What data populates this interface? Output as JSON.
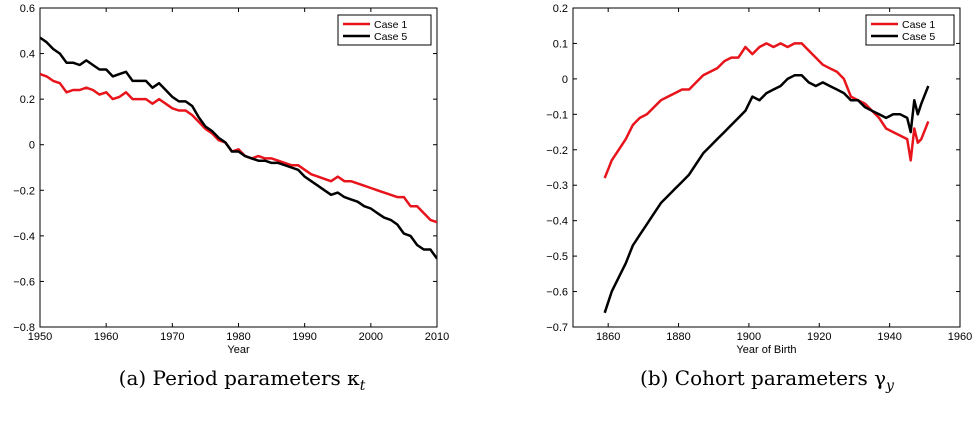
{
  "chart_data": [
    {
      "type": "line",
      "xlabel": "Year",
      "ylabel": "",
      "xlim": [
        1950,
        2010
      ],
      "ylim": [
        -0.8,
        0.6
      ],
      "xticks": [
        "1950",
        "1960",
        "1970",
        "1980",
        "1990",
        "2000",
        "2010"
      ],
      "yticks": [
        "0.6",
        "0.4",
        "0.2",
        "0",
        "−0.2",
        "−0.4",
        "−0.6",
        "−0.8"
      ],
      "legend_position": "top-right",
      "caption": "(a) Period parameters κ",
      "caption_sub": "t",
      "grid": false,
      "series": [
        {
          "name": "Case 1",
          "color": "#e8141c",
          "x": [
            1950,
            1951,
            1952,
            1953,
            1954,
            1955,
            1956,
            1957,
            1958,
            1959,
            1960,
            1961,
            1962,
            1963,
            1964,
            1965,
            1966,
            1967,
            1968,
            1969,
            1970,
            1971,
            1972,
            1973,
            1974,
            1975,
            1976,
            1977,
            1978,
            1979,
            1980,
            1981,
            1982,
            1983,
            1984,
            1985,
            1986,
            1987,
            1988,
            1989,
            1990,
            1991,
            1992,
            1993,
            1994,
            1995,
            1996,
            1997,
            1998,
            1999,
            2000,
            2001,
            2002,
            2003,
            2004,
            2005,
            2006,
            2007,
            2008,
            2009,
            2010
          ],
          "y": [
            0.31,
            0.3,
            0.28,
            0.27,
            0.23,
            0.24,
            0.24,
            0.25,
            0.24,
            0.22,
            0.23,
            0.2,
            0.21,
            0.23,
            0.2,
            0.2,
            0.2,
            0.18,
            0.2,
            0.18,
            0.16,
            0.15,
            0.15,
            0.13,
            0.1,
            0.07,
            0.05,
            0.02,
            0.01,
            -0.03,
            -0.02,
            -0.05,
            -0.06,
            -0.05,
            -0.06,
            -0.06,
            -0.07,
            -0.08,
            -0.09,
            -0.09,
            -0.11,
            -0.13,
            -0.14,
            -0.15,
            -0.16,
            -0.14,
            -0.16,
            -0.16,
            -0.17,
            -0.18,
            -0.19,
            -0.2,
            -0.21,
            -0.22,
            -0.23,
            -0.23,
            -0.27,
            -0.27,
            -0.3,
            -0.33,
            -0.34
          ]
        },
        {
          "name": "Case 5",
          "color": "#000000",
          "x": [
            1950,
            1951,
            1952,
            1953,
            1954,
            1955,
            1956,
            1957,
            1958,
            1959,
            1960,
            1961,
            1962,
            1963,
            1964,
            1965,
            1966,
            1967,
            1968,
            1969,
            1970,
            1971,
            1972,
            1973,
            1974,
            1975,
            1976,
            1977,
            1978,
            1979,
            1980,
            1981,
            1982,
            1983,
            1984,
            1985,
            1986,
            1987,
            1988,
            1989,
            1990,
            1991,
            1992,
            1993,
            1994,
            1995,
            1996,
            1997,
            1998,
            1999,
            2000,
            2001,
            2002,
            2003,
            2004,
            2005,
            2006,
            2007,
            2008,
            2009,
            2010
          ],
          "y": [
            0.47,
            0.45,
            0.42,
            0.4,
            0.36,
            0.36,
            0.35,
            0.37,
            0.35,
            0.33,
            0.33,
            0.3,
            0.31,
            0.32,
            0.28,
            0.28,
            0.28,
            0.25,
            0.27,
            0.24,
            0.21,
            0.19,
            0.19,
            0.17,
            0.12,
            0.08,
            0.06,
            0.03,
            0.01,
            -0.03,
            -0.03,
            -0.05,
            -0.06,
            -0.07,
            -0.07,
            -0.08,
            -0.08,
            -0.09,
            -0.1,
            -0.11,
            -0.14,
            -0.16,
            -0.18,
            -0.2,
            -0.22,
            -0.21,
            -0.23,
            -0.24,
            -0.25,
            -0.27,
            -0.28,
            -0.3,
            -0.32,
            -0.33,
            -0.35,
            -0.39,
            -0.4,
            -0.44,
            -0.46,
            -0.46,
            -0.5
          ]
        }
      ]
    },
    {
      "type": "line",
      "xlabel": "Year of Birth",
      "ylabel": "",
      "xlim": [
        1850,
        1960
      ],
      "ylim": [
        -0.7,
        0.2
      ],
      "xticks": [
        "1860",
        "1880",
        "1900",
        "1920",
        "1940",
        "1960"
      ],
      "yticks": [
        "0.2",
        "0.1",
        "0",
        "−0.1",
        "−0.2",
        "−0.3",
        "−0.4",
        "−0.5",
        "−0.6",
        "−0.7"
      ],
      "legend_position": "top-right",
      "caption": "(b) Cohort parameters γ",
      "caption_sub": "y",
      "grid": false,
      "series": [
        {
          "name": "Case 1",
          "color": "#e8141c",
          "x": [
            1859,
            1861,
            1863,
            1865,
            1867,
            1869,
            1871,
            1873,
            1875,
            1877,
            1879,
            1881,
            1883,
            1885,
            1887,
            1889,
            1891,
            1893,
            1895,
            1897,
            1899,
            1901,
            1903,
            1905,
            1907,
            1909,
            1911,
            1913,
            1915,
            1917,
            1919,
            1921,
            1923,
            1925,
            1927,
            1929,
            1931,
            1933,
            1935,
            1937,
            1939,
            1941,
            1943,
            1945,
            1946,
            1947,
            1948,
            1949,
            1951
          ],
          "x_note": "",
          "y": [
            -0.28,
            -0.23,
            -0.2,
            -0.17,
            -0.13,
            -0.11,
            -0.1,
            -0.08,
            -0.06,
            -0.05,
            -0.04,
            -0.03,
            -0.03,
            -0.01,
            0.01,
            0.02,
            0.03,
            0.05,
            0.06,
            0.06,
            0.09,
            0.07,
            0.09,
            0.1,
            0.09,
            0.1,
            0.09,
            0.1,
            0.1,
            0.08,
            0.06,
            0.04,
            0.03,
            0.02,
            0.0,
            -0.05,
            -0.06,
            -0.07,
            -0.09,
            -0.11,
            -0.14,
            -0.15,
            -0.16,
            -0.17,
            -0.23,
            -0.14,
            -0.18,
            -0.17,
            -0.12
          ]
        },
        {
          "name": "Case 5",
          "color": "#000000",
          "x": [
            1859,
            1861,
            1863,
            1865,
            1867,
            1869,
            1871,
            1873,
            1875,
            1877,
            1879,
            1881,
            1883,
            1885,
            1887,
            1889,
            1891,
            1893,
            1895,
            1897,
            1899,
            1901,
            1903,
            1905,
            1907,
            1909,
            1911,
            1913,
            1915,
            1917,
            1919,
            1921,
            1923,
            1925,
            1927,
            1929,
            1931,
            1933,
            1935,
            1937,
            1939,
            1941,
            1943,
            1945,
            1946,
            1947,
            1948,
            1949,
            1951
          ],
          "y": [
            -0.66,
            -0.6,
            -0.56,
            -0.52,
            -0.47,
            -0.44,
            -0.41,
            -0.38,
            -0.35,
            -0.33,
            -0.31,
            -0.29,
            -0.27,
            -0.24,
            -0.21,
            -0.19,
            -0.17,
            -0.15,
            -0.13,
            -0.11,
            -0.09,
            -0.05,
            -0.06,
            -0.04,
            -0.03,
            -0.02,
            0.0,
            0.01,
            0.01,
            -0.01,
            -0.02,
            -0.01,
            -0.02,
            -0.03,
            -0.04,
            -0.06,
            -0.06,
            -0.08,
            -0.09,
            -0.1,
            -0.11,
            -0.1,
            -0.1,
            -0.11,
            -0.15,
            -0.06,
            -0.1,
            -0.07,
            -0.02
          ]
        }
      ]
    }
  ]
}
